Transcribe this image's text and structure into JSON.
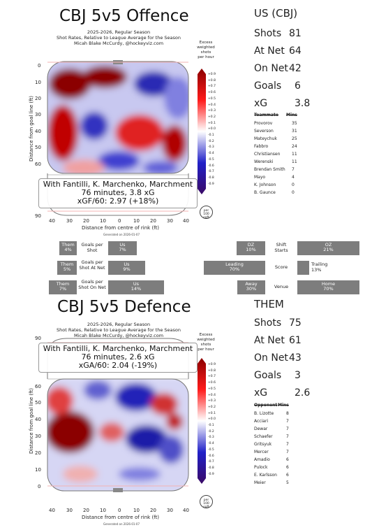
{
  "offence": {
    "title": "CBJ 5v5 Offence",
    "subtitle_lines": [
      "2025-2026, Regular Season",
      "Shot Rates, Relative to League Average for the Season",
      "Micah Blake McCurdy, @hockeyviz.com"
    ],
    "info_lines": [
      "With Fantilli, K. Marchenko, Marchment",
      "76 minutes, 3.8 xG",
      "xGF/60: 2.97 (+18%)"
    ],
    "y_ticks": [
      "0",
      "10",
      "20",
      "30",
      "40",
      "50",
      "60",
      "90"
    ],
    "generated": "Generated on 2026-01-07"
  },
  "defence": {
    "title": "CBJ 5v5 Defence",
    "subtitle_lines": [
      "2025-2026, Regular Season",
      "Shot Rates, Relative to League Average for the Season",
      "Micah Blake McCurdy, @hockeyviz.com"
    ],
    "info_lines": [
      "With Fantilli, K. Marchenko, Marchment",
      "76 minutes, 2.6 xG",
      "xGA/60: 2.04 (-19%)"
    ],
    "y_ticks": [
      "90",
      "60",
      "50",
      "40",
      "30",
      "20",
      "10",
      "0"
    ],
    "generated": "Generated on 2026-01-07"
  },
  "axes": {
    "ylabel": "Distance from goal line (ft)",
    "xlabel": "Distance from centre of rink (ft)",
    "x_ticks": [
      "40",
      "30",
      "20",
      "10",
      "0",
      "10",
      "20",
      "30",
      "40"
    ]
  },
  "colorbar": {
    "label_lines": [
      "Excess",
      "weighted",
      "shots",
      "per hour"
    ],
    "ticks": [
      "+0.9",
      "+0.8",
      "+0.7",
      "+0.6",
      "+0.5",
      "+0.4",
      "+0.3",
      "+0.2",
      "+0.1",
      "+0.0",
      "-0.1",
      "-0.2",
      "-0.3",
      "-0.4",
      "-0.5",
      "-0.6",
      "-0.7",
      "-0.8",
      "-0.9"
    ],
    "colors": {
      "red": "#8b0000",
      "white": "#ffffff",
      "blue": "#1a1aa0",
      "purple": "#3b0a66"
    }
  },
  "per_unit_lines": [
    "per",
    "100",
    "sqft"
  ],
  "us": {
    "header": "US (CBJ)",
    "stats": [
      {
        "label": "Shots",
        "value": "81"
      },
      {
        "label": "At Net",
        "value": "64"
      },
      {
        "label": "On Net",
        "value": "42"
      },
      {
        "label": "Goals",
        "value": "6"
      },
      {
        "label": "xG",
        "value": "3.8"
      }
    ],
    "table_headers": [
      "Teammate",
      "Mins"
    ],
    "players": [
      {
        "name": "Provorov",
        "mins": "35"
      },
      {
        "name": "Severson",
        "mins": "31"
      },
      {
        "name": "Mateychuk",
        "mins": "25"
      },
      {
        "name": "Fabbro",
        "mins": "24"
      },
      {
        "name": "Christiansen",
        "mins": "11"
      },
      {
        "name": "Werenski",
        "mins": "11"
      },
      {
        "name": "Brendan Smith",
        "mins": "7"
      },
      {
        "name": "Mayo",
        "mins": "4"
      },
      {
        "name": "K. Johnson",
        "mins": "0"
      },
      {
        "name": "B. Gaunce",
        "mins": "0"
      }
    ]
  },
  "them": {
    "header": "THEM",
    "stats": [
      {
        "label": "Shots",
        "value": "75"
      },
      {
        "label": "At Net",
        "value": "61"
      },
      {
        "label": "On Net",
        "value": "43"
      },
      {
        "label": "Goals",
        "value": "3"
      },
      {
        "label": "xG",
        "value": "2.6"
      }
    ],
    "table_headers": [
      "Opponent",
      "Mins"
    ],
    "players": [
      {
        "name": "B. Lizotte",
        "mins": "8"
      },
      {
        "name": "Acciari",
        "mins": "7"
      },
      {
        "name": "Dewar",
        "mins": "7"
      },
      {
        "name": "Schaefer",
        "mins": "7"
      },
      {
        "name": "Gritsyuk",
        "mins": "7"
      },
      {
        "name": "Mercer",
        "mins": "7"
      },
      {
        "name": "Amadio",
        "mins": "6"
      },
      {
        "name": "Pulock",
        "mins": "6"
      },
      {
        "name": "E. Karlsson",
        "mins": "6"
      },
      {
        "name": "Meier",
        "mins": "5"
      }
    ]
  },
  "rate_bars": [
    {
      "label": "Goals per Shot",
      "them_label": "Them",
      "them_value": "4%",
      "them_frac": 0.04,
      "us_label": "Us",
      "us_value": "7%",
      "us_frac": 0.07
    },
    {
      "label": "Goals per Shot At Net",
      "them_label": "Them",
      "them_value": "5%",
      "them_frac": 0.05,
      "us_label": "Us",
      "us_value": "9%",
      "us_frac": 0.09
    },
    {
      "label": "Goals per Shot On Net",
      "them_label": "Them",
      "them_value": "7%",
      "them_frac": 0.07,
      "us_label": "Us",
      "us_value": "14%",
      "us_frac": 0.14
    }
  ],
  "split_bars": [
    {
      "label": "Shift Starts",
      "left_label": "DZ",
      "left_value": "10%",
      "left_frac": 0.1,
      "right_label": "OZ",
      "right_value": "21%",
      "right_frac": 0.21
    },
    {
      "label": "Score",
      "left_label": "Leading",
      "left_value": "70%",
      "left_frac": 0.7,
      "right_label": "Trailing",
      "right_value": "13%",
      "right_frac": 0.13
    },
    {
      "label": "Venue",
      "left_label": "Away",
      "left_value": "30%",
      "left_frac": 0.3,
      "right_label": "Home",
      "right_value": "70%",
      "right_frac": 0.7
    }
  ]
}
